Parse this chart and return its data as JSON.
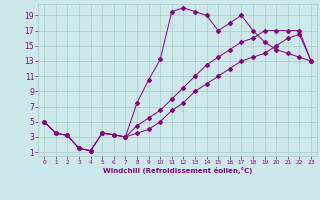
{
  "xlabel": "Windchill (Refroidissement éolien,°C)",
  "bg_color": "#cce8e8",
  "grid_color": "#aacccc",
  "line_color": "#880088",
  "xlim": [
    -0.5,
    23.5
  ],
  "ylim": [
    0.5,
    20.5
  ],
  "xticks": [
    0,
    1,
    2,
    3,
    4,
    5,
    6,
    7,
    8,
    9,
    10,
    11,
    12,
    13,
    14,
    15,
    16,
    17,
    18,
    19,
    20,
    21,
    22,
    23
  ],
  "yticks": [
    1,
    3,
    5,
    7,
    9,
    11,
    13,
    15,
    17,
    19
  ],
  "line1_x": [
    0,
    1,
    2,
    3,
    4,
    5,
    6,
    7,
    8,
    9,
    10,
    11,
    12,
    13,
    14,
    15,
    16,
    17,
    18,
    19,
    20,
    21,
    22,
    23
  ],
  "line1_y": [
    5,
    3.5,
    3.2,
    1.5,
    1.2,
    3.5,
    3.3,
    3.0,
    7.5,
    10.5,
    13.2,
    19.5,
    20,
    19.5,
    19.0,
    17.0,
    18.0,
    19.0,
    17.0,
    15.5,
    14.5,
    14.0,
    13.5,
    13.0
  ],
  "line2_x": [
    0,
    1,
    2,
    3,
    4,
    5,
    6,
    7,
    8,
    9,
    10,
    11,
    12,
    13,
    14,
    15,
    16,
    17,
    18,
    19,
    20,
    21,
    22,
    23
  ],
  "line2_y": [
    5.0,
    3.5,
    3.2,
    1.5,
    1.2,
    3.5,
    3.3,
    3.0,
    3.5,
    4.0,
    5.0,
    6.5,
    7.5,
    9.0,
    10.0,
    11.0,
    12.0,
    13.0,
    13.5,
    14.0,
    15.0,
    16.0,
    16.5,
    13.0
  ],
  "line3_x": [
    0,
    1,
    2,
    3,
    4,
    5,
    6,
    7,
    8,
    9,
    10,
    11,
    12,
    13,
    14,
    15,
    16,
    17,
    18,
    19,
    20,
    21,
    22,
    23
  ],
  "line3_y": [
    5.0,
    3.5,
    3.2,
    1.5,
    1.2,
    3.5,
    3.3,
    3.0,
    4.5,
    5.5,
    6.5,
    8.0,
    9.5,
    11.0,
    12.5,
    13.5,
    14.5,
    15.5,
    16.0,
    17.0,
    17.0,
    17.0,
    17.0,
    13.0
  ]
}
